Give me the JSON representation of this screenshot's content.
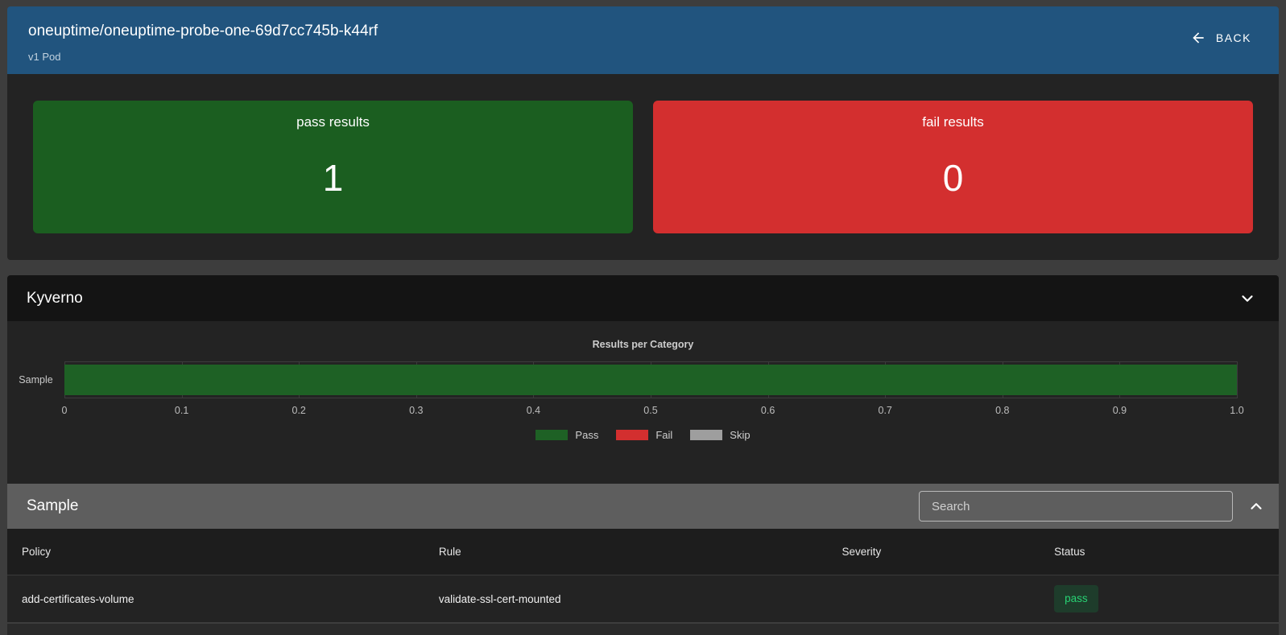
{
  "header": {
    "title": "oneuptime/oneuptime-probe-one-69d7cc745b-k44rf",
    "subtitle": "v1 Pod",
    "back_label": "BACK"
  },
  "summary_cards": [
    {
      "label": "pass results",
      "value": "1",
      "color": "#1b5e20"
    },
    {
      "label": "fail results",
      "value": "0",
      "color": "#d32f2f"
    }
  ],
  "kyverno": {
    "title": "Kyverno"
  },
  "chart_data": {
    "type": "bar",
    "orientation": "horizontal",
    "title": "Results per Category",
    "categories": [
      "Sample"
    ],
    "series": [
      {
        "name": "Pass",
        "values": [
          1
        ],
        "color": "#1e6125"
      },
      {
        "name": "Fail",
        "values": [
          0
        ],
        "color": "#d32f2f"
      },
      {
        "name": "Skip",
        "values": [
          0
        ],
        "color": "#9e9e9e"
      }
    ],
    "xlim": [
      0,
      1.0
    ],
    "x_ticks": [
      "0",
      "0.1",
      "0.2",
      "0.3",
      "0.4",
      "0.5",
      "0.6",
      "0.7",
      "0.8",
      "0.9",
      "1.0"
    ],
    "grid": true,
    "legend_position": "bottom"
  },
  "sample_section": {
    "title": "Sample",
    "search_placeholder": "Search"
  },
  "table": {
    "columns": [
      "Policy",
      "Rule",
      "Severity",
      "Status"
    ],
    "rows": [
      {
        "policy": "add-certificates-volume",
        "rule": "validate-ssl-cert-mounted",
        "severity": "",
        "status": "pass"
      }
    ]
  },
  "colors": {
    "page_background": "#3d3d3d",
    "header_blue": "#21547e",
    "panel_dark": "#232323",
    "section_header_dark": "#141414",
    "sample_header_gray": "#5e5e5e",
    "pass_green": "#1b5e20",
    "fail_red": "#d32f2f",
    "skip_gray": "#9e9e9e",
    "badge_pass_bg": "#1e3c2b",
    "badge_pass_text": "#28d173"
  }
}
